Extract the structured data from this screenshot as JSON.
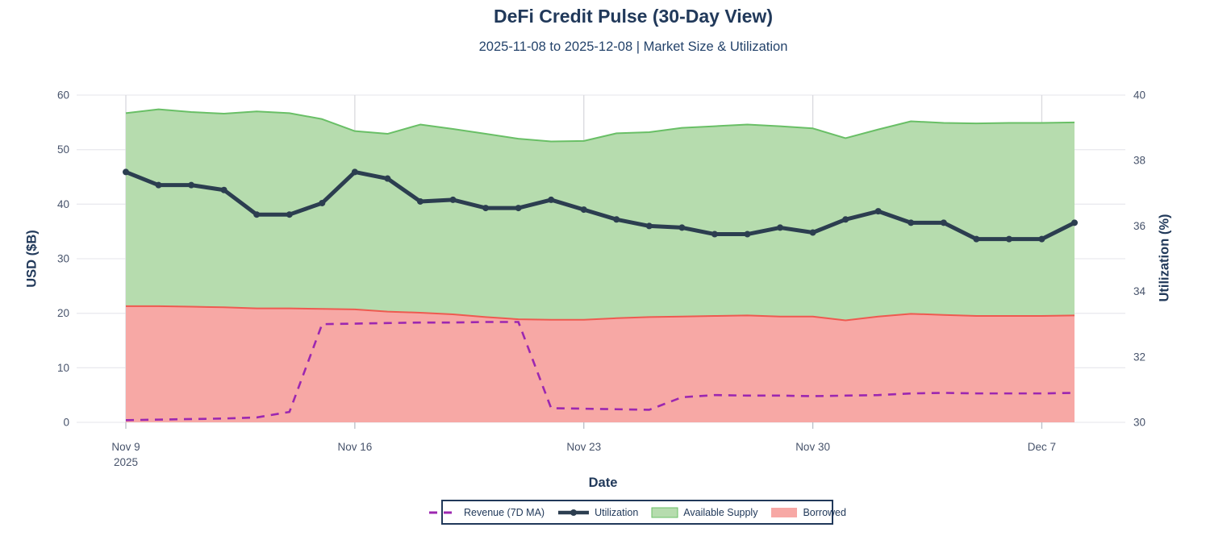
{
  "header": {
    "title": "DeFi Credit Pulse (30-Day View)",
    "subtitle": "2025-11-08 to 2025-12-08 | Market Size & Utilization"
  },
  "chart_data": {
    "type": "area",
    "title": "DeFi Credit Pulse (30-Day View)",
    "subtitle": "2025-11-08 to 2025-12-08 | Market Size & Utilization",
    "xlabel": "Date",
    "ylabel_left": "USD ($B)",
    "ylabel_right": "Utilization (%)",
    "ylim_left": [
      0,
      60
    ],
    "ylim_right": [
      30,
      40
    ],
    "yticks_left": [
      0,
      10,
      20,
      30,
      40,
      50,
      60
    ],
    "yticks_right": [
      30,
      32,
      34,
      36,
      38,
      40
    ],
    "grid": true,
    "legend_position": "bottom-center",
    "x": [
      "2025-11-09",
      "2025-11-10",
      "2025-11-11",
      "2025-11-12",
      "2025-11-13",
      "2025-11-14",
      "2025-11-15",
      "2025-11-16",
      "2025-11-17",
      "2025-11-18",
      "2025-11-19",
      "2025-11-20",
      "2025-11-21",
      "2025-11-22",
      "2025-11-23",
      "2025-11-24",
      "2025-11-25",
      "2025-11-26",
      "2025-11-27",
      "2025-11-28",
      "2025-11-29",
      "2025-11-30",
      "2025-12-01",
      "2025-12-02",
      "2025-12-03",
      "2025-12-04",
      "2025-12-05",
      "2025-12-06",
      "2025-12-07",
      "2025-12-08"
    ],
    "xticks": [
      {
        "index": 0,
        "label": "Nov 9",
        "sublabel": "2025"
      },
      {
        "index": 7,
        "label": "Nov 16"
      },
      {
        "index": 14,
        "label": "Nov 23"
      },
      {
        "index": 21,
        "label": "Nov 30"
      },
      {
        "index": 28,
        "label": "Dec 7"
      }
    ],
    "series": [
      {
        "name": "Revenue (7D MA)",
        "axis": "left",
        "style": "dashed-line",
        "color": "#9C27B0",
        "values": [
          0.4,
          0.5,
          0.6,
          0.7,
          0.9,
          1.9,
          18.0,
          18.1,
          18.2,
          18.3,
          18.3,
          18.4,
          18.4,
          2.6,
          2.5,
          2.4,
          2.3,
          4.6,
          5.0,
          4.9,
          4.9,
          4.8,
          4.9,
          5.0,
          5.3,
          5.4,
          5.3,
          5.3,
          5.3,
          5.4
        ]
      },
      {
        "name": "Utilization",
        "axis": "right",
        "style": "line-markers",
        "color": "#2c3e50",
        "values": [
          37.65,
          37.25,
          37.25,
          37.1,
          36.35,
          36.35,
          36.7,
          37.65,
          37.45,
          36.75,
          36.8,
          36.55,
          36.55,
          36.8,
          36.5,
          36.2,
          36.0,
          35.95,
          35.75,
          35.75,
          35.95,
          35.8,
          36.2,
          36.45,
          36.1,
          36.1,
          35.6,
          35.6,
          35.6,
          36.1
        ]
      },
      {
        "name": "Available Supply",
        "axis": "left",
        "style": "area",
        "color": "#69bf66",
        "fill_color": "#b6dcae",
        "values": [
          56.7,
          57.4,
          56.9,
          56.6,
          57.0,
          56.7,
          55.6,
          53.4,
          52.9,
          54.6,
          53.8,
          52.9,
          52.0,
          51.5,
          51.6,
          53.0,
          53.2,
          54.0,
          54.3,
          54.6,
          54.3,
          53.9,
          52.1,
          53.7,
          55.2,
          54.9,
          54.8,
          54.9,
          54.9,
          55.0
        ]
      },
      {
        "name": "Borrowed",
        "axis": "left",
        "style": "area",
        "color": "#ee5a50",
        "fill_color": "#f7a8a5",
        "values": [
          21.3,
          21.3,
          21.2,
          21.1,
          20.9,
          20.9,
          20.8,
          20.7,
          20.3,
          20.1,
          19.8,
          19.3,
          18.9,
          18.8,
          18.8,
          19.1,
          19.3,
          19.4,
          19.5,
          19.6,
          19.4,
          19.4,
          18.7,
          19.4,
          19.9,
          19.7,
          19.5,
          19.5,
          19.5,
          19.6
        ]
      }
    ],
    "colors": {
      "title_text": "#21395a",
      "tick_text": "#47536b",
      "grid_h": "#eaeaef",
      "grid_v": "#d9d9de",
      "tick_mark": "#b9bec6",
      "legend_border": "#21395a"
    }
  }
}
